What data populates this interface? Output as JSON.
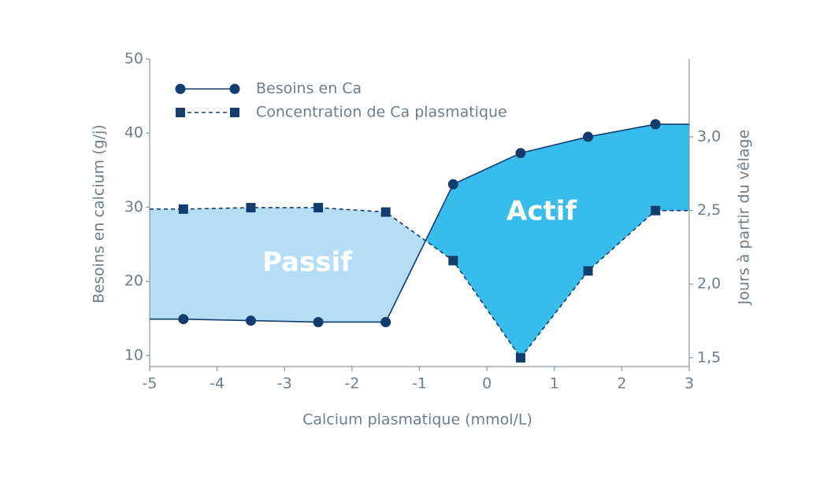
{
  "chart_data": {
    "type": "line",
    "x_label": "Calcium plasmatique (mmol/L)",
    "y_label": "Besoins en calcium (g/j)",
    "y2_label": "Jours à partir du vêlage",
    "annotations": [
      "Passif",
      "Actif"
    ],
    "xlim": [
      -5,
      3
    ],
    "xticks": [
      -5,
      -4,
      -3,
      -2,
      -1,
      0,
      1,
      2,
      3
    ],
    "ylim": [
      8.5,
      50
    ],
    "yticks": [
      10,
      20,
      30,
      40,
      50
    ],
    "y2lim": [
      1.44,
      3.53
    ],
    "y2ticks": [
      {
        "value": 1.5,
        "label": "1,5"
      },
      {
        "value": 2.0,
        "label": "2,0"
      },
      {
        "value": 2.5,
        "label": "2,5"
      },
      {
        "value": 3.0,
        "label": "3,0"
      }
    ],
    "legend": "top-left",
    "fill_colors": [
      "#b5def6",
      "#38bcec"
    ],
    "series": [
      {
        "name": "Besoins en Ca",
        "color": "#123d6e",
        "marker": "circle",
        "dash": false,
        "x": [
          -4.5,
          -3.5,
          -2.5,
          -1.5,
          -0.5,
          0.5,
          1.5,
          2.5
        ],
        "values": [
          14.9,
          14.7,
          14.5,
          14.5,
          33.1,
          37.3,
          39.5,
          41.2
        ]
      },
      {
        "name": "Concentration de Ca plasmatique",
        "color": "#123d6e",
        "marker": "square",
        "dash": true,
        "axis": "y2",
        "x": [
          -4.5,
          -3.5,
          -2.5,
          -1.5,
          -0.5,
          0.5,
          1.5,
          2.5
        ],
        "values": [
          2.51,
          2.52,
          2.52,
          2.49,
          2.16,
          1.5,
          2.09,
          2.5
        ]
      }
    ]
  }
}
